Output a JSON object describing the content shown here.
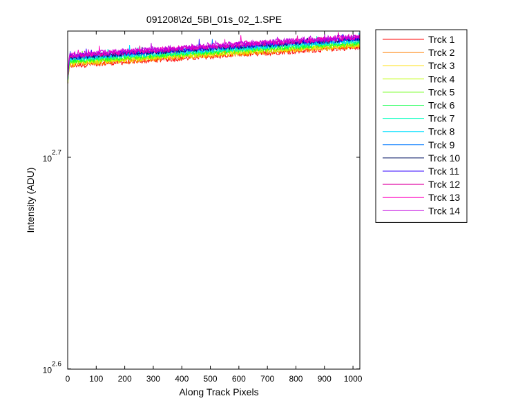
{
  "figure": {
    "background": "#ffffff"
  },
  "chart_data": {
    "type": "line",
    "title": "091208\\2d_5BI_01s_02_1.SPE",
    "xlabel": "Along Track Pixels",
    "ylabel": "Intensity (ADU)",
    "yscale": "log",
    "xlim": [
      0,
      1024
    ],
    "ylim": [
      398,
      575
    ],
    "xticks": [
      "0",
      "100",
      "200",
      "300",
      "400",
      "500",
      "600",
      "700",
      "800",
      "900",
      "1000"
    ],
    "xtick_values": [
      0,
      100,
      200,
      300,
      400,
      500,
      600,
      700,
      800,
      900,
      1000
    ],
    "yticks": [
      {
        "base": "10",
        "exp": "2.6",
        "value": 398.1
      },
      {
        "base": "10",
        "exp": "2.7",
        "value": 501.2
      }
    ],
    "grid": false,
    "legend_position": "outside-right",
    "series": [
      {
        "name": "Trck 1",
        "color": "#ff0000",
        "start": 553.7,
        "end": 565.0
      },
      {
        "name": "Trck 2",
        "color": "#ff7f00",
        "start": 554.3,
        "end": 565.6
      },
      {
        "name": "Trck 3",
        "color": "#ffdf00",
        "start": 555.0,
        "end": 566.2
      },
      {
        "name": "Trck 4",
        "color": "#bfff00",
        "start": 555.6,
        "end": 566.8
      },
      {
        "name": "Trck 5",
        "color": "#5fff00",
        "start": 556.2,
        "end": 567.4
      },
      {
        "name": "Trck 6",
        "color": "#00ff3f",
        "start": 556.8,
        "end": 568.0
      },
      {
        "name": "Trck 7",
        "color": "#00ffbf",
        "start": 557.4,
        "end": 568.6
      },
      {
        "name": "Trck 8",
        "color": "#00dfff",
        "start": 558.0,
        "end": 569.2
      },
      {
        "name": "Trck 9",
        "color": "#0078ff",
        "start": 558.5,
        "end": 569.8
      },
      {
        "name": "Trck 10",
        "color": "#001060",
        "start": 558.8,
        "end": 570.2
      },
      {
        "name": "Trck 11",
        "color": "#3000ff",
        "start": 559.2,
        "end": 570.6
      },
      {
        "name": "Trck 12",
        "color": "#df00a0",
        "start": 559.6,
        "end": 571.0
      },
      {
        "name": "Trck 13",
        "color": "#ff00bf",
        "start": 560.0,
        "end": 571.4
      },
      {
        "name": "Trck 14",
        "color": "#bf00df",
        "start": 560.4,
        "end": 571.8
      }
    ]
  }
}
